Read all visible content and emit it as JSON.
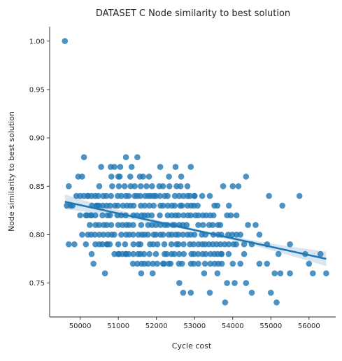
{
  "chart_data": {
    "type": "scatter",
    "title": "DATASET C Node similarity to best solution",
    "xlabel": "Cycle cost",
    "ylabel": "Node similarity to best solution",
    "xlim": [
      49200,
      56700
    ],
    "ylim": [
      0.715,
      1.015
    ],
    "xticks": [
      50000,
      51000,
      52000,
      53000,
      54000,
      55000,
      56000
    ],
    "yticks": [
      0.75,
      0.8,
      0.85,
      0.9,
      0.95,
      1.0
    ],
    "xtick_labels": [
      "50000",
      "51000",
      "52000",
      "53000",
      "54000",
      "55000",
      "56000"
    ],
    "ytick_labels": [
      "0.75",
      "0.80",
      "0.85",
      "0.90",
      "0.95",
      "1.00"
    ],
    "grid": false,
    "legend": "none",
    "color": "#1f77b4",
    "regression": {
      "x": [
        49600,
        56450
      ],
      "y": [
        0.834,
        0.775
      ]
    },
    "points": [
      {
        "x": 49600,
        "y": 1.0
      },
      {
        "x": 49700,
        "y": 0.85
      },
      {
        "x": 49650,
        "y": 0.83
      },
      {
        "x": 49750,
        "y": 0.83
      },
      {
        "x": 49800,
        "y": 0.83
      },
      {
        "x": 49700,
        "y": 0.79
      },
      {
        "x": 49850,
        "y": 0.79
      },
      {
        "x": 49950,
        "y": 0.86
      },
      {
        "x": 50050,
        "y": 0.86
      },
      {
        "x": 50100,
        "y": 0.88
      },
      {
        "x": 49900,
        "y": 0.84
      },
      {
        "x": 50000,
        "y": 0.84
      },
      {
        "x": 50100,
        "y": 0.84
      },
      {
        "x": 50200,
        "y": 0.84
      },
      {
        "x": 50300,
        "y": 0.84
      },
      {
        "x": 50000,
        "y": 0.82
      },
      {
        "x": 50150,
        "y": 0.82
      },
      {
        "x": 50300,
        "y": 0.82
      },
      {
        "x": 50050,
        "y": 0.8
      },
      {
        "x": 50200,
        "y": 0.8
      },
      {
        "x": 50150,
        "y": 0.79
      },
      {
        "x": 50300,
        "y": 0.78
      },
      {
        "x": 50350,
        "y": 0.77
      },
      {
        "x": 50400,
        "y": 0.79
      },
      {
        "x": 50250,
        "y": 0.81
      },
      {
        "x": 50450,
        "y": 0.83
      },
      {
        "x": 50500,
        "y": 0.85
      },
      {
        "x": 50550,
        "y": 0.87
      },
      {
        "x": 50650,
        "y": 0.76
      },
      {
        "x": 50700,
        "y": 0.79
      },
      {
        "x": 50800,
        "y": 0.87
      },
      {
        "x": 50900,
        "y": 0.87
      },
      {
        "x": 51050,
        "y": 0.87
      },
      {
        "x": 51000,
        "y": 0.86
      },
      {
        "x": 51200,
        "y": 0.88
      },
      {
        "x": 51350,
        "y": 0.87
      },
      {
        "x": 51500,
        "y": 0.88
      },
      {
        "x": 51650,
        "y": 0.86
      },
      {
        "x": 51850,
        "y": 0.84
      },
      {
        "x": 52100,
        "y": 0.87
      },
      {
        "x": 52500,
        "y": 0.87
      },
      {
        "x": 52650,
        "y": 0.86
      },
      {
        "x": 52900,
        "y": 0.87
      },
      {
        "x": 53000,
        "y": 0.84
      },
      {
        "x": 53200,
        "y": 0.84
      },
      {
        "x": 53400,
        "y": 0.84
      },
      {
        "x": 53600,
        "y": 0.83
      },
      {
        "x": 53750,
        "y": 0.85
      },
      {
        "x": 53900,
        "y": 0.83
      },
      {
        "x": 54000,
        "y": 0.85
      },
      {
        "x": 54150,
        "y": 0.85
      },
      {
        "x": 54350,
        "y": 0.86
      },
      {
        "x": 54400,
        "y": 0.81
      },
      {
        "x": 54600,
        "y": 0.81
      },
      {
        "x": 54950,
        "y": 0.84
      },
      {
        "x": 55300,
        "y": 0.83
      },
      {
        "x": 55500,
        "y": 0.79
      },
      {
        "x": 55750,
        "y": 0.84
      },
      {
        "x": 55900,
        "y": 0.78
      },
      {
        "x": 56000,
        "y": 0.77
      },
      {
        "x": 56100,
        "y": 0.76
      },
      {
        "x": 56300,
        "y": 0.78
      },
      {
        "x": 56450,
        "y": 0.76
      },
      {
        "x": 51000,
        "y": 0.78
      },
      {
        "x": 51200,
        "y": 0.78
      },
      {
        "x": 51500,
        "y": 0.77
      },
      {
        "x": 51600,
        "y": 0.76
      },
      {
        "x": 51900,
        "y": 0.76
      },
      {
        "x": 52200,
        "y": 0.77
      },
      {
        "x": 52600,
        "y": 0.75
      },
      {
        "x": 52700,
        "y": 0.74
      },
      {
        "x": 52900,
        "y": 0.74
      },
      {
        "x": 53250,
        "y": 0.76
      },
      {
        "x": 53400,
        "y": 0.74
      },
      {
        "x": 53600,
        "y": 0.76
      },
      {
        "x": 53800,
        "y": 0.73
      },
      {
        "x": 53850,
        "y": 0.75
      },
      {
        "x": 54050,
        "y": 0.75
      },
      {
        "x": 54350,
        "y": 0.75
      },
      {
        "x": 54500,
        "y": 0.74
      },
      {
        "x": 54700,
        "y": 0.77
      },
      {
        "x": 54900,
        "y": 0.77
      },
      {
        "x": 55000,
        "y": 0.74
      },
      {
        "x": 55150,
        "y": 0.73
      },
      {
        "x": 55100,
        "y": 0.76
      },
      {
        "x": 55250,
        "y": 0.76
      },
      {
        "x": 55200,
        "y": 0.78
      },
      {
        "x": 55500,
        "y": 0.76
      },
      {
        "x": 53700,
        "y": 0.78
      },
      {
        "x": 54000,
        "y": 0.77
      },
      {
        "x": 54200,
        "y": 0.77
      },
      {
        "x": 54300,
        "y": 0.78
      },
      {
        "x": 54500,
        "y": 0.79
      },
      {
        "x": 54700,
        "y": 0.8
      },
      {
        "x": 54900,
        "y": 0.79
      },
      {
        "x": 54100,
        "y": 0.8
      },
      {
        "x": 53850,
        "y": 0.82
      },
      {
        "x": 53950,
        "y": 0.82
      },
      {
        "x": 54100,
        "y": 0.82
      },
      {
        "x": 54300,
        "y": 0.79
      },
      {
        "x": 54200,
        "y": 0.8
      }
    ],
    "dense_region_fill": [
      {
        "y": 0.84,
        "x_from": 50200,
        "x_to": 53000,
        "step": 100
      },
      {
        "y": 0.83,
        "x_from": 50100,
        "x_to": 53500,
        "step": 100
      },
      {
        "y": 0.82,
        "x_from": 50200,
        "x_to": 53500,
        "step": 100
      },
      {
        "y": 0.81,
        "x_from": 50300,
        "x_to": 53700,
        "step": 100
      },
      {
        "y": 0.8,
        "x_from": 50300,
        "x_to": 54000,
        "step": 100
      },
      {
        "y": 0.79,
        "x_from": 50500,
        "x_to": 54100,
        "step": 100
      },
      {
        "y": 0.78,
        "x_from": 50900,
        "x_to": 53900,
        "step": 100
      },
      {
        "y": 0.77,
        "x_from": 51300,
        "x_to": 53700,
        "step": 100
      },
      {
        "y": 0.85,
        "x_from": 50700,
        "x_to": 52800,
        "step": 150
      },
      {
        "y": 0.86,
        "x_from": 50800,
        "x_to": 52300,
        "step": 250
      }
    ]
  }
}
